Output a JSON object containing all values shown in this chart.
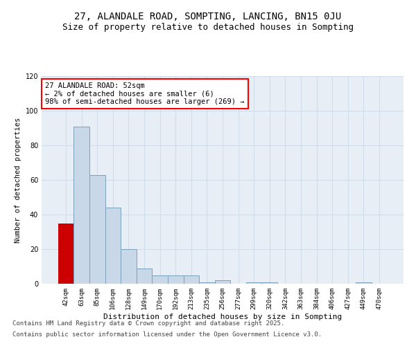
{
  "title_line1": "27, ALANDALE ROAD, SOMPTING, LANCING, BN15 0JU",
  "title_line2": "Size of property relative to detached houses in Sompting",
  "xlabel": "Distribution of detached houses by size in Sompting",
  "ylabel": "Number of detached properties",
  "categories": [
    "42sqm",
    "63sqm",
    "85sqm",
    "106sqm",
    "128sqm",
    "149sqm",
    "170sqm",
    "192sqm",
    "213sqm",
    "235sqm",
    "256sqm",
    "277sqm",
    "299sqm",
    "320sqm",
    "342sqm",
    "363sqm",
    "384sqm",
    "406sqm",
    "427sqm",
    "449sqm",
    "470sqm"
  ],
  "values": [
    35,
    91,
    63,
    44,
    20,
    9,
    5,
    5,
    5,
    1,
    2,
    0,
    1,
    1,
    0,
    0,
    0,
    0,
    0,
    1,
    0
  ],
  "bar_color": "#c8d8e8",
  "bar_edge_color": "#7aa0bb",
  "highlight_bar_index": 0,
  "highlight_color": "#cc0000",
  "annotation_box_text": "27 ALANDALE ROAD: 52sqm\n← 2% of detached houses are smaller (6)\n98% of semi-detached houses are larger (269) →",
  "ylim": [
    0,
    120
  ],
  "yticks": [
    0,
    20,
    40,
    60,
    80,
    100,
    120
  ],
  "grid_color": "#d0dce8",
  "background_color": "#e8eef5",
  "footer_line1": "Contains HM Land Registry data © Crown copyright and database right 2025.",
  "footer_line2": "Contains public sector information licensed under the Open Government Licence v3.0.",
  "title_fontsize": 10,
  "subtitle_fontsize": 9,
  "tick_fontsize": 6.5,
  "ylabel_fontsize": 7.5,
  "xlabel_fontsize": 8,
  "footer_fontsize": 6.5,
  "annot_fontsize": 7.5
}
